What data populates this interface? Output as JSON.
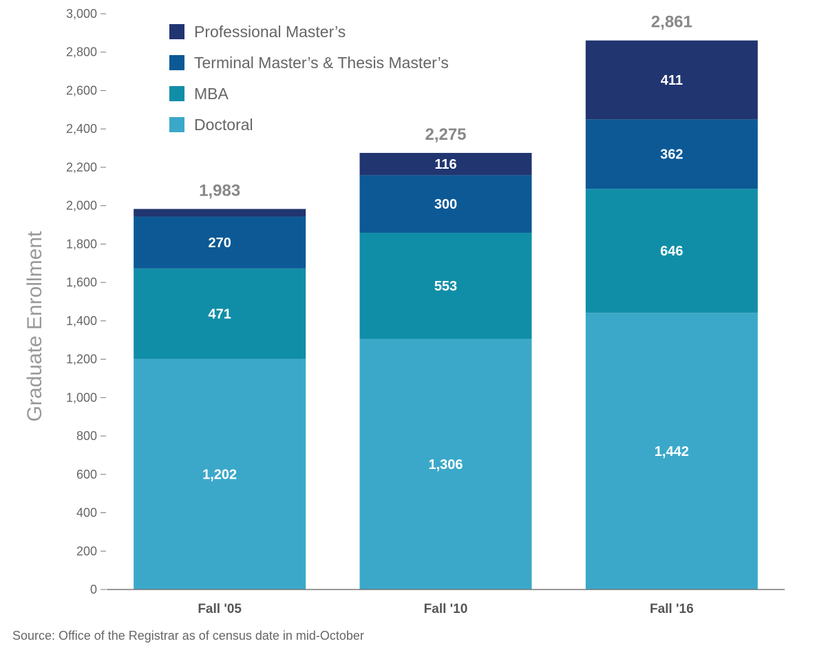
{
  "chart_data": {
    "type": "bar",
    "stacked": true,
    "categories": [
      "Fall '05",
      "Fall '10",
      "Fall '16"
    ],
    "series": [
      {
        "name": "Doctoral",
        "values": [
          1202,
          1306,
          1442
        ],
        "color": "#3ba8c9",
        "labels": [
          "1,202",
          "1,306",
          "1,442"
        ]
      },
      {
        "name": "MBA",
        "values": [
          471,
          553,
          646
        ],
        "color": "#118ea7",
        "labels": [
          "471",
          "553",
          "646"
        ]
      },
      {
        "name": "Terminal Master’s & Thesis Master’s",
        "values": [
          270,
          300,
          362
        ],
        "color": "#0c5995",
        "labels": [
          "270",
          "300",
          "362"
        ]
      },
      {
        "name": "Professional Master’s",
        "values": [
          40,
          116,
          411
        ],
        "color": "#213570",
        "labels": [
          "",
          "116",
          "411"
        ]
      }
    ],
    "totals": [
      "1,983",
      "2,275",
      "2,861"
    ],
    "ylabel": "Graduate Enrollment",
    "xlabel": "",
    "ylim": [
      0,
      3000
    ],
    "yticks": [
      0,
      200,
      400,
      600,
      800,
      1000,
      1200,
      1400,
      1600,
      1800,
      2000,
      2200,
      2400,
      2600,
      2800,
      3000
    ],
    "ytick_labels": [
      "0",
      "200",
      "400",
      "600",
      "800",
      "1,000",
      "1,200",
      "1,400",
      "1,600",
      "1,800",
      "2,000",
      "2,200",
      "2,400",
      "2,600",
      "2,800",
      "3,000"
    ],
    "legend_position": "top-left",
    "legend_order": [
      "Professional Master’s",
      "Terminal Master’s & Thesis Master’s",
      "MBA",
      "Doctoral"
    ],
    "grid": false
  },
  "source_note": "Source: Office of the Registrar as of census date in mid-October"
}
